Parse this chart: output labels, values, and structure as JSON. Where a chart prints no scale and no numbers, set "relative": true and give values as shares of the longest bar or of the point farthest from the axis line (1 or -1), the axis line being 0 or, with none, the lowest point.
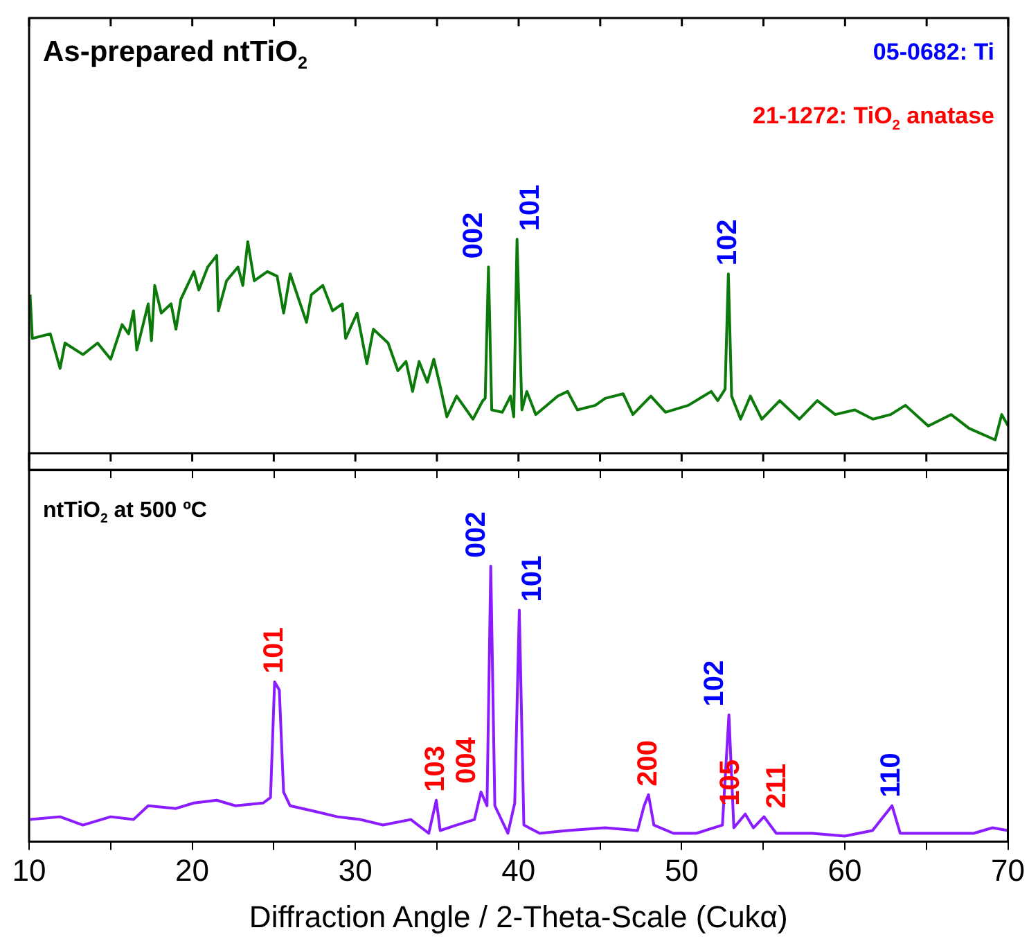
{
  "chart_data": [
    {
      "type": "line",
      "title": "As-prepared ntTiO$_{2}$",
      "relative": true,
      "tick_labels": false,
      "xlim": [
        10,
        70
      ],
      "xticks": [
        10,
        {
          "value": 15,
          "label": null
        },
        20,
        {
          "value": 25,
          "label": null
        },
        30,
        {
          "value": 35,
          "label": null
        },
        40,
        {
          "value": 45,
          "label": null
        },
        50,
        {
          "value": 55,
          "label": null
        },
        60,
        {
          "value": 65,
          "label": null
        },
        70
      ],
      "series": [
        {
          "color": "#0b7a0b",
          "x": [
            10.06,
            10.2,
            11.3,
            11.9,
            12.2,
            13.3,
            14.2,
            15.0,
            15.7,
            16.1,
            16.4,
            16.6,
            17.3,
            17.5,
            17.7,
            18.1,
            18.7,
            19.0,
            19.3,
            20.1,
            20.4,
            20.95,
            21.5,
            21.6,
            22.1,
            22.8,
            23.1,
            23.4,
            23.8,
            24.6,
            25.2,
            25.6,
            26.0,
            27.0,
            27.3,
            28.0,
            28.6,
            29.2,
            29.4,
            30.1,
            30.7,
            31.1,
            32.0,
            32.6,
            33.1,
            33.5,
            33.9,
            34.4,
            34.8,
            35.2,
            35.6,
            36.2,
            37.2,
            37.8,
            37.95,
            38.15,
            38.35,
            39.0,
            39.5,
            39.7,
            39.9,
            40.2,
            40.5,
            41.05,
            42.4,
            43.0,
            43.6,
            44.7,
            45.3,
            46.4,
            47.0,
            48.1,
            49.0,
            50.4,
            51.8,
            52.2,
            52.65,
            52.85,
            53.05,
            53.6,
            54.2,
            54.9,
            56.0,
            57.2,
            58.3,
            59.4,
            60.6,
            61.7,
            62.8,
            63.7,
            65.1,
            66.5,
            67.6,
            69.2,
            69.6,
            70.0
          ],
          "values": [
            0.76,
            0.57,
            0.59,
            0.44,
            0.55,
            0.5,
            0.55,
            0.48,
            0.63,
            0.59,
            0.69,
            0.52,
            0.72,
            0.56,
            0.8,
            0.68,
            0.72,
            0.61,
            0.74,
            0.86,
            0.78,
            0.88,
            0.93,
            0.69,
            0.82,
            0.88,
            0.8,
            0.99,
            0.82,
            0.86,
            0.84,
            0.68,
            0.85,
            0.64,
            0.76,
            0.8,
            0.69,
            0.72,
            0.57,
            0.68,
            0.46,
            0.61,
            0.55,
            0.43,
            0.47,
            0.34,
            0.47,
            0.38,
            0.48,
            0.36,
            0.23,
            0.32,
            0.22,
            0.3,
            0.31,
            0.88,
            0.26,
            0.25,
            0.32,
            0.23,
            1.0,
            0.26,
            0.34,
            0.24,
            0.32,
            0.34,
            0.26,
            0.28,
            0.31,
            0.33,
            0.24,
            0.32,
            0.25,
            0.28,
            0.34,
            0.3,
            0.35,
            0.85,
            0.32,
            0.22,
            0.32,
            0.22,
            0.3,
            0.22,
            0.3,
            0.24,
            0.26,
            0.22,
            0.24,
            0.28,
            0.19,
            0.24,
            0.18,
            0.13,
            0.24,
            0.19
          ]
        }
      ],
      "annotations": [
        "05-0682: Ti",
        "21-1272: TiO$_{2}$ anatase",
        {
          "text": "002",
          "x": 38.15,
          "y": 0.88
        },
        {
          "text": "101",
          "x": 39.9,
          "y": 1.0
        },
        {
          "text": "102",
          "x": 52.85,
          "y": 0.85
        }
      ]
    },
    {
      "type": "line",
      "title": "ntTiO$_{2}$ at 500 ºC",
      "xlabel": "Diffraction Angle / 2-Theta-Scale (Cukα)",
      "relative": true,
      "xlim": [
        10,
        70
      ],
      "xticks": [
        10,
        {
          "value": 15,
          "label": null
        },
        20,
        {
          "value": 25,
          "label": null
        },
        30,
        {
          "value": 35,
          "label": null
        },
        40,
        {
          "value": 45,
          "label": null
        },
        50,
        {
          "value": 55,
          "label": null
        },
        60,
        {
          "value": 65,
          "label": null
        },
        70
      ],
      "series": [
        {
          "color": "#8a1cff",
          "x": [
            10.06,
            11.9,
            13.3,
            15.0,
            16.4,
            17.3,
            19.0,
            20.1,
            21.5,
            22.65,
            24.35,
            24.8,
            25.05,
            25.34,
            25.6,
            26.0,
            27.5,
            28.9,
            30.3,
            31.7,
            33.4,
            34.5,
            34.96,
            35.2,
            36.2,
            37.3,
            37.7,
            38.07,
            38.3,
            38.55,
            39.35,
            39.77,
            40.05,
            40.33,
            41.3,
            43.0,
            45.3,
            47.3,
            47.7,
            47.97,
            48.3,
            49.5,
            50.9,
            52.5,
            52.9,
            53.2,
            53.9,
            54.4,
            55.05,
            55.8,
            58.0,
            60.0,
            61.7,
            62.9,
            63.4,
            65.1,
            67.9,
            69.06,
            70.0
          ],
          "values": [
            0.08,
            0.09,
            0.06,
            0.09,
            0.08,
            0.13,
            0.12,
            0.14,
            0.15,
            0.13,
            0.14,
            0.16,
            0.58,
            0.55,
            0.18,
            0.13,
            0.11,
            0.09,
            0.08,
            0.06,
            0.08,
            0.03,
            0.15,
            0.04,
            0.06,
            0.08,
            0.18,
            0.13,
            1.0,
            0.13,
            0.03,
            0.14,
            0.84,
            0.06,
            0.03,
            0.04,
            0.05,
            0.04,
            0.13,
            0.17,
            0.06,
            0.03,
            0.03,
            0.06,
            0.46,
            0.05,
            0.1,
            0.05,
            0.09,
            0.03,
            0.03,
            0.02,
            0.04,
            0.13,
            0.03,
            0.03,
            0.03,
            0.05,
            0.04
          ]
        }
      ],
      "annotations": [
        {
          "text": "101",
          "x": 25.05,
          "y": 0.58
        },
        {
          "text": "103",
          "x": 34.96,
          "y": 0.15
        },
        {
          "text": "004",
          "x": 37.7,
          "y": 0.18
        },
        {
          "text": "002",
          "x": 38.3,
          "y": 1.0
        },
        {
          "text": "101",
          "x": 40.05,
          "y": 0.84
        },
        {
          "text": "200",
          "x": 47.97,
          "y": 0.17
        },
        {
          "text": "102",
          "x": 52.9,
          "y": 0.46
        },
        {
          "text": "105",
          "x": 53.9,
          "y": 0.1
        },
        {
          "text": "211",
          "x": 55.05,
          "y": 0.09
        },
        {
          "text": "110",
          "x": 62.9,
          "y": 0.13
        }
      ]
    }
  ]
}
